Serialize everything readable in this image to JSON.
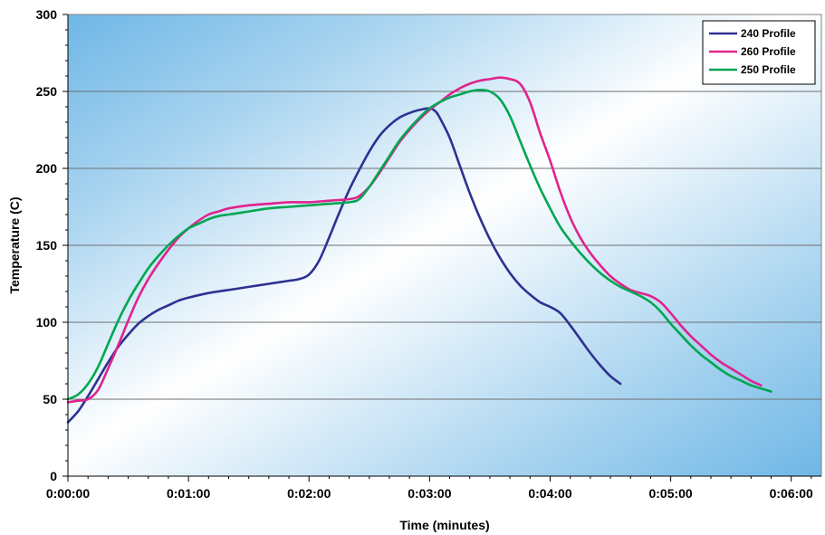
{
  "chart_data": {
    "type": "line",
    "xlabel": "Time (minutes)",
    "ylabel": "Temperature (C)",
    "xlim": [
      0,
      375
    ],
    "ylim": [
      0,
      300
    ],
    "x_ticks": [
      0,
      60,
      120,
      180,
      240,
      300,
      360
    ],
    "x_tick_labels": [
      "0:00:00",
      "0:01:00",
      "0:02:00",
      "0:03:00",
      "0:04:00",
      "0:05:00",
      "0:06:00"
    ],
    "y_ticks": [
      0,
      50,
      100,
      150,
      200,
      250,
      300
    ],
    "y_tick_labels": [
      "0",
      "50",
      "100",
      "150",
      "200",
      "250",
      "300"
    ],
    "x_minor_step": 10,
    "y_minor_step": 10,
    "grid": "horizontal major",
    "legend_position": "top-right",
    "series": [
      {
        "name": "240 Profile",
        "color": "#2e3192",
        "points": [
          [
            0,
            35
          ],
          [
            5,
            42
          ],
          [
            10,
            52
          ],
          [
            15,
            63
          ],
          [
            20,
            74
          ],
          [
            25,
            84
          ],
          [
            30,
            92
          ],
          [
            35,
            99
          ],
          [
            40,
            104
          ],
          [
            45,
            108
          ],
          [
            50,
            111
          ],
          [
            55,
            114
          ],
          [
            60,
            116
          ],
          [
            70,
            119
          ],
          [
            80,
            121
          ],
          [
            90,
            123
          ],
          [
            100,
            125
          ],
          [
            110,
            127
          ],
          [
            115,
            128
          ],
          [
            120,
            131
          ],
          [
            125,
            140
          ],
          [
            130,
            155
          ],
          [
            135,
            171
          ],
          [
            140,
            186
          ],
          [
            145,
            199
          ],
          [
            150,
            211
          ],
          [
            155,
            221
          ],
          [
            160,
            228
          ],
          [
            165,
            233
          ],
          [
            170,
            236
          ],
          [
            175,
            238
          ],
          [
            180,
            239
          ],
          [
            183,
            237
          ],
          [
            185,
            233
          ],
          [
            190,
            220
          ],
          [
            195,
            202
          ],
          [
            200,
            184
          ],
          [
            205,
            168
          ],
          [
            210,
            154
          ],
          [
            215,
            142
          ],
          [
            220,
            132
          ],
          [
            225,
            124
          ],
          [
            230,
            118
          ],
          [
            235,
            113
          ],
          [
            240,
            110
          ],
          [
            245,
            106
          ],
          [
            250,
            98
          ],
          [
            255,
            89
          ],
          [
            260,
            80
          ],
          [
            265,
            72
          ],
          [
            270,
            65
          ],
          [
            275,
            60
          ]
        ]
      },
      {
        "name": "260 Profile",
        "color": "#e0238c",
        "points": [
          [
            0,
            48
          ],
          [
            5,
            49
          ],
          [
            10,
            50
          ],
          [
            15,
            56
          ],
          [
            20,
            70
          ],
          [
            25,
            85
          ],
          [
            30,
            101
          ],
          [
            35,
            116
          ],
          [
            40,
            128
          ],
          [
            45,
            138
          ],
          [
            50,
            147
          ],
          [
            55,
            155
          ],
          [
            60,
            161
          ],
          [
            65,
            166
          ],
          [
            70,
            170
          ],
          [
            75,
            172
          ],
          [
            80,
            174
          ],
          [
            90,
            176
          ],
          [
            100,
            177
          ],
          [
            110,
            178
          ],
          [
            120,
            178
          ],
          [
            130,
            179
          ],
          [
            140,
            180
          ],
          [
            145,
            182
          ],
          [
            150,
            188
          ],
          [
            155,
            197
          ],
          [
            160,
            207
          ],
          [
            165,
            217
          ],
          [
            170,
            225
          ],
          [
            175,
            232
          ],
          [
            180,
            238
          ],
          [
            185,
            243
          ],
          [
            190,
            248
          ],
          [
            195,
            252
          ],
          [
            200,
            255
          ],
          [
            205,
            257
          ],
          [
            210,
            258
          ],
          [
            215,
            259
          ],
          [
            220,
            258
          ],
          [
            225,
            255
          ],
          [
            230,
            243
          ],
          [
            235,
            223
          ],
          [
            240,
            205
          ],
          [
            245,
            185
          ],
          [
            250,
            168
          ],
          [
            255,
            155
          ],
          [
            260,
            145
          ],
          [
            265,
            137
          ],
          [
            270,
            130
          ],
          [
            275,
            125
          ],
          [
            280,
            121
          ],
          [
            285,
            119
          ],
          [
            290,
            117
          ],
          [
            295,
            113
          ],
          [
            300,
            106
          ],
          [
            305,
            98
          ],
          [
            310,
            91
          ],
          [
            315,
            85
          ],
          [
            320,
            79
          ],
          [
            325,
            74
          ],
          [
            330,
            70
          ],
          [
            335,
            66
          ],
          [
            340,
            62
          ],
          [
            345,
            59
          ]
        ]
      },
      {
        "name": "250 Profile",
        "color": "#00a651",
        "points": [
          [
            0,
            50
          ],
          [
            5,
            53
          ],
          [
            10,
            60
          ],
          [
            15,
            71
          ],
          [
            20,
            86
          ],
          [
            25,
            101
          ],
          [
            30,
            114
          ],
          [
            35,
            125
          ],
          [
            40,
            135
          ],
          [
            45,
            143
          ],
          [
            50,
            150
          ],
          [
            55,
            156
          ],
          [
            60,
            161
          ],
          [
            65,
            164
          ],
          [
            70,
            167
          ],
          [
            75,
            169
          ],
          [
            80,
            170
          ],
          [
            90,
            172
          ],
          [
            100,
            174
          ],
          [
            110,
            175
          ],
          [
            120,
            176
          ],
          [
            130,
            177
          ],
          [
            140,
            178
          ],
          [
            145,
            180
          ],
          [
            150,
            188
          ],
          [
            155,
            198
          ],
          [
            160,
            208
          ],
          [
            165,
            218
          ],
          [
            170,
            226
          ],
          [
            175,
            233
          ],
          [
            180,
            239
          ],
          [
            185,
            243
          ],
          [
            190,
            246
          ],
          [
            195,
            248
          ],
          [
            200,
            250
          ],
          [
            205,
            251
          ],
          [
            210,
            250
          ],
          [
            215,
            245
          ],
          [
            220,
            234
          ],
          [
            225,
            218
          ],
          [
            230,
            202
          ],
          [
            235,
            187
          ],
          [
            240,
            174
          ],
          [
            245,
            162
          ],
          [
            250,
            153
          ],
          [
            255,
            145
          ],
          [
            260,
            138
          ],
          [
            265,
            132
          ],
          [
            270,
            127
          ],
          [
            275,
            123
          ],
          [
            280,
            120
          ],
          [
            285,
            117
          ],
          [
            290,
            113
          ],
          [
            295,
            107
          ],
          [
            300,
            99
          ],
          [
            305,
            92
          ],
          [
            310,
            85
          ],
          [
            315,
            79
          ],
          [
            320,
            74
          ],
          [
            325,
            69
          ],
          [
            330,
            65
          ],
          [
            335,
            62
          ],
          [
            340,
            59
          ],
          [
            345,
            57
          ],
          [
            350,
            55
          ]
        ]
      }
    ]
  }
}
